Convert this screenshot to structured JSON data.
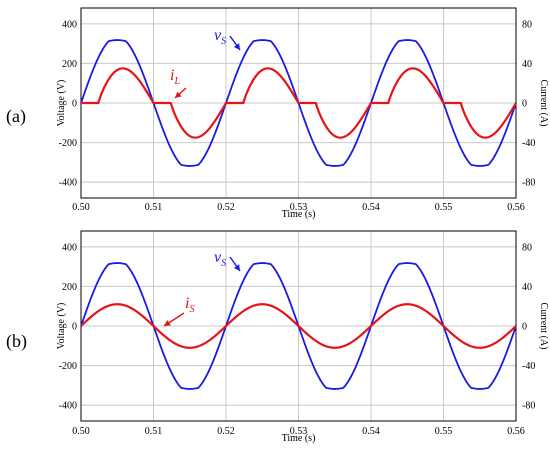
{
  "panel_labels": [
    "(a)",
    "(b)"
  ],
  "colors": {
    "voltage": "#1a1ae6",
    "current": "#e61414",
    "grid": "#c8c8c8",
    "axis": "#000000"
  },
  "chart_data": [
    {
      "type": "line",
      "panel": "(a)",
      "xlabel": "Time (s)",
      "ylabel_left": "Voltage (V)",
      "ylabel_right": "Current (A)",
      "xlim": [
        0.5,
        0.56
      ],
      "ylim_left": [
        -480,
        480
      ],
      "ylim_right": [
        -96,
        96
      ],
      "x_ticks": [
        "0.50",
        "0.51",
        "0.52",
        "0.53",
        "0.54",
        "0.55",
        "0.56"
      ],
      "y_ticks_left": [
        "400",
        "200",
        "0",
        "-200",
        "-400"
      ],
      "y_ticks_right": [
        "80",
        "40",
        "0",
        "-40",
        "-80"
      ],
      "grid": true,
      "series": [
        {
          "name": "vS",
          "axis": "left",
          "color": "#1a1ae6",
          "amplitude_peak": 318,
          "frequency_hz": 50,
          "waveform": "flat-topped sinusoid, peak ~318 V",
          "x": [
            0.5,
            0.5025,
            0.505,
            0.5075,
            0.51,
            0.5125,
            0.515,
            0.5175,
            0.52,
            0.5225,
            0.525,
            0.5275,
            0.53,
            0.5325,
            0.535,
            0.5375,
            0.54,
            0.5425,
            0.545,
            0.5475,
            0.55,
            0.5525,
            0.555,
            0.5575,
            0.56
          ],
          "y": [
            0,
            230,
            318,
            230,
            0,
            -230,
            -318,
            -230,
            0,
            230,
            318,
            230,
            0,
            -230,
            -318,
            -230,
            0,
            230,
            318,
            230,
            0,
            -230,
            -318,
            -230,
            0
          ]
        },
        {
          "name": "iL",
          "axis": "right",
          "color": "#e61414",
          "amplitude_peak": 35,
          "waveform": "discontinuous current, zero for ~4 ms after each voltage zero crossing",
          "x": [
            0.5,
            0.502,
            0.504,
            0.507,
            0.51,
            0.512,
            0.514,
            0.517,
            0.52,
            0.522,
            0.524,
            0.527,
            0.53,
            0.532,
            0.534,
            0.537,
            0.54,
            0.542,
            0.544,
            0.547,
            0.55,
            0.552,
            0.554,
            0.557,
            0.56
          ],
          "y": [
            0,
            0,
            10,
            35,
            0,
            0,
            -10,
            -35,
            0,
            0,
            10,
            35,
            0,
            0,
            -10,
            -35,
            0,
            0,
            10,
            35,
            0,
            0,
            -10,
            -35,
            0
          ]
        }
      ],
      "annotations": [
        {
          "text": "v",
          "subscript": "S",
          "series": "vS"
        },
        {
          "text": "i",
          "subscript": "L",
          "series": "iL"
        }
      ]
    },
    {
      "type": "line",
      "panel": "(b)",
      "xlabel": "Time (s)",
      "ylabel_left": "Voltage (V)",
      "ylabel_right": "Current (A)",
      "xlim": [
        0.5,
        0.56
      ],
      "ylim_left": [
        -480,
        480
      ],
      "ylim_right": [
        -96,
        96
      ],
      "x_ticks": [
        "0.50",
        "0.51",
        "0.52",
        "0.53",
        "0.54",
        "0.55",
        "0.56"
      ],
      "y_ticks_left": [
        "400",
        "200",
        "0",
        "-200",
        "-400"
      ],
      "y_ticks_right": [
        "80",
        "40",
        "0",
        "-40",
        "-80"
      ],
      "grid": true,
      "series": [
        {
          "name": "vS",
          "axis": "left",
          "color": "#1a1ae6",
          "amplitude_peak": 318,
          "frequency_hz": 50,
          "waveform": "flat-topped sinusoid, peak ~318 V",
          "x": [
            0.5,
            0.5025,
            0.505,
            0.5075,
            0.51,
            0.5125,
            0.515,
            0.5175,
            0.52,
            0.5225,
            0.525,
            0.5275,
            0.53,
            0.5325,
            0.535,
            0.5375,
            0.54,
            0.5425,
            0.545,
            0.5475,
            0.55,
            0.5525,
            0.555,
            0.5575,
            0.56
          ],
          "y": [
            0,
            230,
            318,
            230,
            0,
            -230,
            -318,
            -230,
            0,
            230,
            318,
            230,
            0,
            -230,
            -318,
            -230,
            0,
            230,
            318,
            230,
            0,
            -230,
            -318,
            -230,
            0
          ]
        },
        {
          "name": "iS",
          "axis": "right",
          "color": "#e61414",
          "amplitude_peak": 22,
          "frequency_hz": 50,
          "waveform": "sinusoid in phase with vS, peak ~22 A",
          "x": [
            0.5,
            0.5025,
            0.505,
            0.5075,
            0.51,
            0.5125,
            0.515,
            0.5175,
            0.52,
            0.5225,
            0.525,
            0.5275,
            0.53,
            0.5325,
            0.535,
            0.5375,
            0.54,
            0.5425,
            0.545,
            0.5475,
            0.55,
            0.5525,
            0.555,
            0.5575,
            0.56
          ],
          "y": [
            0,
            15.6,
            22,
            15.6,
            0,
            -15.6,
            -22,
            -15.6,
            0,
            15.6,
            22,
            15.6,
            0,
            -15.6,
            -22,
            -15.6,
            0,
            15.6,
            22,
            15.6,
            0,
            -15.6,
            -22,
            -15.6,
            0
          ]
        }
      ],
      "annotations": [
        {
          "text": "v",
          "subscript": "S",
          "series": "vS"
        },
        {
          "text": "i",
          "subscript": "S",
          "series": "iS"
        }
      ]
    }
  ]
}
